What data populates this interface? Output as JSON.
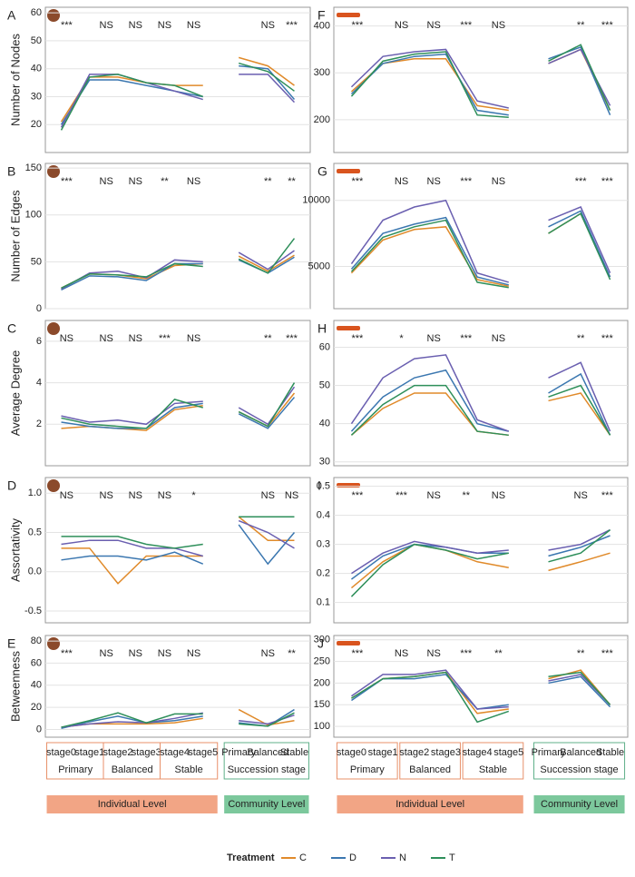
{
  "chart_data": [
    {
      "type": "line",
      "panel": "A",
      "ylabel": "Number of Nodes",
      "categories": [
        "stage0",
        "stage1",
        "stage2",
        "stage3",
        "stage4",
        "stage5",
        "Primary",
        "Balanced",
        "Stable"
      ],
      "ylim": [
        10,
        62
      ],
      "yticks": [
        20,
        30,
        40,
        50,
        60
      ],
      "grid": true,
      "significance": [
        "***",
        "NS",
        "NS",
        "NS",
        "NS",
        "NS",
        "***"
      ],
      "series": [
        {
          "name": "C",
          "color": "#e08a2a",
          "values": [
            21,
            37,
            37,
            35,
            34,
            34,
            44,
            41,
            34
          ]
        },
        {
          "name": "D",
          "color": "#3b77b0",
          "values": [
            20,
            36,
            36,
            34,
            32,
            30,
            41,
            40,
            29
          ]
        },
        {
          "name": "N",
          "color": "#6a5fb0",
          "values": [
            19,
            38,
            38,
            35,
            32,
            29,
            38,
            38,
            28
          ]
        },
        {
          "name": "T",
          "color": "#2e8f5a",
          "values": [
            18,
            37,
            38,
            35,
            34,
            30,
            42,
            39,
            32
          ]
        }
      ]
    },
    {
      "type": "line",
      "panel": "B",
      "ylabel": "Number of Edges",
      "categories": [
        "stage0",
        "stage1",
        "stage2",
        "stage3",
        "stage4",
        "stage5",
        "Primary",
        "Balanced",
        "Stable"
      ],
      "ylim": [
        0,
        155
      ],
      "yticks": [
        0,
        50,
        100,
        150
      ],
      "grid": true,
      "significance": [
        "***",
        "NS",
        "NS",
        "**",
        "NS",
        "**",
        "**"
      ],
      "series": [
        {
          "name": "C",
          "color": "#e08a2a",
          "values": [
            22,
            37,
            36,
            32,
            46,
            48,
            56,
            40,
            57
          ]
        },
        {
          "name": "D",
          "color": "#3b77b0",
          "values": [
            20,
            35,
            34,
            30,
            48,
            48,
            52,
            38,
            55
          ]
        },
        {
          "name": "N",
          "color": "#6a5fb0",
          "values": [
            21,
            38,
            40,
            33,
            52,
            50,
            60,
            42,
            62
          ]
        },
        {
          "name": "T",
          "color": "#2e8f5a",
          "values": [
            22,
            37,
            36,
            34,
            48,
            45,
            53,
            38,
            75
          ]
        }
      ]
    },
    {
      "type": "line",
      "panel": "C",
      "ylabel": "Average Degree",
      "categories": [
        "stage0",
        "stage1",
        "stage2",
        "stage3",
        "stage4",
        "stage5",
        "Primary",
        "Balanced",
        "Stable"
      ],
      "ylim": [
        0,
        7
      ],
      "yticks": [
        2,
        4,
        6
      ],
      "grid": true,
      "significance": [
        "NS",
        "NS",
        "NS",
        "***",
        "NS",
        "**",
        "***"
      ],
      "series": [
        {
          "name": "C",
          "color": "#e08a2a",
          "values": [
            1.8,
            1.9,
            1.8,
            1.7,
            2.7,
            2.9,
            2.6,
            1.9,
            3.5
          ]
        },
        {
          "name": "D",
          "color": "#3b77b0",
          "values": [
            2.1,
            1.9,
            1.8,
            1.8,
            2.8,
            3.0,
            2.5,
            1.8,
            3.3
          ]
        },
        {
          "name": "N",
          "color": "#6a5fb0",
          "values": [
            2.4,
            2.1,
            2.2,
            2.0,
            3.0,
            3.1,
            2.8,
            2.0,
            3.8
          ]
        },
        {
          "name": "T",
          "color": "#2e8f5a",
          "values": [
            2.3,
            2.0,
            1.9,
            1.8,
            3.2,
            2.8,
            2.6,
            1.9,
            4.0
          ]
        }
      ]
    },
    {
      "type": "line",
      "panel": "D",
      "ylabel": "Assortativity",
      "categories": [
        "stage0",
        "stage1",
        "stage2",
        "stage3",
        "stage4",
        "stage5",
        "Primary",
        "Balanced",
        "Stable"
      ],
      "ylim": [
        -0.65,
        1.2
      ],
      "yticks": [
        -0.5,
        {
          "value": 0,
          "label": "0.0"
        },
        0.5,
        {
          "value": 1,
          "label": "1.0"
        }
      ],
      "grid": true,
      "significance": [
        "NS",
        "NS",
        "NS",
        "NS",
        "*",
        "NS",
        "NS"
      ],
      "series": [
        {
          "name": "C",
          "color": "#e08a2a",
          "values": [
            0.3,
            0.3,
            -0.15,
            0.2,
            0.2,
            0.2,
            0.7,
            0.4,
            0.4
          ]
        },
        {
          "name": "D",
          "color": "#3b77b0",
          "values": [
            0.15,
            0.2,
            0.2,
            0.15,
            0.25,
            0.1,
            0.6,
            0.1,
            0.5
          ]
        },
        {
          "name": "N",
          "color": "#6a5fb0",
          "values": [
            0.35,
            0.4,
            0.4,
            0.3,
            0.3,
            0.2,
            0.65,
            0.5,
            0.3
          ]
        },
        {
          "name": "T",
          "color": "#2e8f5a",
          "values": [
            0.45,
            0.45,
            0.45,
            0.35,
            0.3,
            0.35,
            0.7,
            0.7,
            0.7
          ]
        }
      ]
    },
    {
      "type": "line",
      "panel": "E",
      "ylabel": "Betweenness",
      "categories": [
        "stage0",
        "stage1",
        "stage2",
        "stage3",
        "stage4",
        "stage5",
        "Primary",
        "Balanced",
        "Stable"
      ],
      "ylim": [
        -7,
        85
      ],
      "yticks": [
        0,
        20,
        40,
        60,
        80
      ],
      "grid": true,
      "significance": [
        "***",
        "NS",
        "NS",
        "NS",
        "NS",
        "NS",
        "**"
      ],
      "series": [
        {
          "name": "C",
          "color": "#e08a2a",
          "values": [
            2,
            5,
            5,
            5,
            6,
            10,
            18,
            4,
            8
          ]
        },
        {
          "name": "D",
          "color": "#3b77b0",
          "values": [
            1,
            7,
            12,
            6,
            8,
            12,
            6,
            3,
            18
          ]
        },
        {
          "name": "N",
          "color": "#6a5fb0",
          "values": [
            2,
            5,
            7,
            6,
            10,
            15,
            8,
            5,
            13
          ]
        },
        {
          "name": "T",
          "color": "#2e8f5a",
          "values": [
            2,
            8,
            15,
            6,
            14,
            14,
            5,
            3,
            15
          ]
        }
      ]
    },
    {
      "type": "line",
      "panel": "F",
      "categories": [
        "stage0",
        "stage1",
        "stage2",
        "stage3",
        "stage4",
        "stage5",
        "Primary",
        "Balanced",
        "Stable"
      ],
      "ylim": [
        130,
        440
      ],
      "yticks": [
        200,
        300,
        400
      ],
      "grid": true,
      "significance": [
        "***",
        "NS",
        "NS",
        "***",
        "NS",
        "**",
        "***"
      ],
      "series": [
        {
          "name": "C",
          "color": "#e08a2a",
          "values": [
            260,
            320,
            330,
            330,
            230,
            220,
            320,
            350,
            220
          ]
        },
        {
          "name": "D",
          "color": "#3b77b0",
          "values": [
            255,
            320,
            335,
            340,
            220,
            210,
            330,
            355,
            210
          ]
        },
        {
          "name": "N",
          "color": "#6a5fb0",
          "values": [
            270,
            335,
            345,
            350,
            240,
            225,
            320,
            350,
            230
          ]
        },
        {
          "name": "T",
          "color": "#2e8f5a",
          "values": [
            250,
            325,
            340,
            345,
            210,
            205,
            325,
            360,
            220
          ]
        }
      ]
    },
    {
      "type": "line",
      "panel": "G",
      "categories": [
        "stage0",
        "stage1",
        "stage2",
        "stage3",
        "stage4",
        "stage5",
        "Primary",
        "Balanced",
        "Stable"
      ],
      "ylim": [
        1800,
        12800
      ],
      "yticks": [
        5000,
        10000
      ],
      "grid": true,
      "significance": [
        "***",
        "NS",
        "NS",
        "***",
        "NS",
        "***",
        "***"
      ],
      "series": [
        {
          "name": "C",
          "color": "#e08a2a",
          "values": [
            4500,
            7000,
            7800,
            8000,
            4000,
            3500,
            7500,
            9000,
            4200
          ]
        },
        {
          "name": "D",
          "color": "#3b77b0",
          "values": [
            4800,
            7500,
            8200,
            8700,
            4200,
            3600,
            8000,
            9200,
            4200
          ]
        },
        {
          "name": "N",
          "color": "#6a5fb0",
          "values": [
            5200,
            8500,
            9500,
            10000,
            4500,
            3800,
            8500,
            9500,
            4500
          ]
        },
        {
          "name": "T",
          "color": "#2e8f5a",
          "values": [
            4600,
            7200,
            8000,
            8500,
            3800,
            3400,
            7500,
            9000,
            4000
          ]
        }
      ]
    },
    {
      "type": "line",
      "panel": "H",
      "categories": [
        "stage0",
        "stage1",
        "stage2",
        "stage3",
        "stage4",
        "stage5",
        "Primary",
        "Balanced",
        "Stable"
      ],
      "ylim": [
        29,
        67
      ],
      "yticks": [
        30,
        40,
        50,
        60
      ],
      "grid": true,
      "significance": [
        "***",
        "*",
        "NS",
        "***",
        "NS",
        "**",
        "***"
      ],
      "series": [
        {
          "name": "C",
          "color": "#e08a2a",
          "values": [
            37,
            44,
            48,
            48,
            38,
            37,
            46,
            48,
            37
          ]
        },
        {
          "name": "D",
          "color": "#3b77b0",
          "values": [
            38,
            47,
            52,
            54,
            40,
            38,
            48,
            53,
            37
          ]
        },
        {
          "name": "N",
          "color": "#6a5fb0",
          "values": [
            40,
            52,
            57,
            58,
            41,
            38,
            52,
            56,
            38
          ]
        },
        {
          "name": "T",
          "color": "#2e8f5a",
          "values": [
            37,
            45,
            50,
            50,
            38,
            37,
            47,
            50,
            37
          ]
        }
      ]
    },
    {
      "type": "line",
      "panel": "I",
      "categories": [
        "stage0",
        "stage1",
        "stage2",
        "stage3",
        "stage4",
        "stage5",
        "Primary",
        "Balanced",
        "Stable"
      ],
      "ylim": [
        0.03,
        0.53
      ],
      "yticks": [
        0.1,
        0.2,
        0.3,
        0.4,
        0.5
      ],
      "grid": true,
      "significance": [
        "***",
        "***",
        "NS",
        "**",
        "NS",
        "NS",
        "***"
      ],
      "series": [
        {
          "name": "C",
          "color": "#e08a2a",
          "values": [
            0.15,
            0.24,
            0.3,
            0.28,
            0.24,
            0.22,
            0.21,
            0.24,
            0.27
          ]
        },
        {
          "name": "D",
          "color": "#3b77b0",
          "values": [
            0.18,
            0.26,
            0.3,
            0.29,
            0.27,
            0.27,
            0.26,
            0.29,
            0.33
          ]
        },
        {
          "name": "N",
          "color": "#6a5fb0",
          "values": [
            0.2,
            0.27,
            0.31,
            0.29,
            0.27,
            0.28,
            0.28,
            0.3,
            0.35
          ]
        },
        {
          "name": "T",
          "color": "#2e8f5a",
          "values": [
            0.12,
            0.23,
            0.3,
            0.28,
            0.25,
            0.27,
            0.24,
            0.27,
            0.35
          ]
        }
      ]
    },
    {
      "type": "line",
      "panel": "J",
      "categories": [
        "stage0",
        "stage1",
        "stage2",
        "stage3",
        "stage4",
        "stage5",
        "Primary",
        "Balanced",
        "Stable"
      ],
      "ylim": [
        75,
        310
      ],
      "yticks": [
        100,
        150,
        200,
        250,
        300
      ],
      "grid": true,
      "significance": [
        "***",
        "NS",
        "NS",
        "***",
        "**",
        "**",
        "***"
      ],
      "series": [
        {
          "name": "C",
          "color": "#e08a2a",
          "values": [
            165,
            210,
            215,
            225,
            130,
            140,
            210,
            230,
            150
          ]
        },
        {
          "name": "D",
          "color": "#3b77b0",
          "values": [
            160,
            210,
            210,
            220,
            140,
            150,
            200,
            215,
            145
          ]
        },
        {
          "name": "N",
          "color": "#6a5fb0",
          "values": [
            170,
            220,
            220,
            230,
            140,
            145,
            205,
            220,
            150
          ]
        },
        {
          "name": "T",
          "color": "#2e8f5a",
          "values": [
            165,
            210,
            215,
            225,
            110,
            135,
            215,
            225,
            150
          ]
        }
      ]
    }
  ],
  "stage_groups": [
    "Primary",
    "Balanced",
    "Stable",
    "Succession stage"
  ],
  "levels": [
    "Individual Level",
    "Community Level"
  ],
  "legend_title": "Treatment"
}
